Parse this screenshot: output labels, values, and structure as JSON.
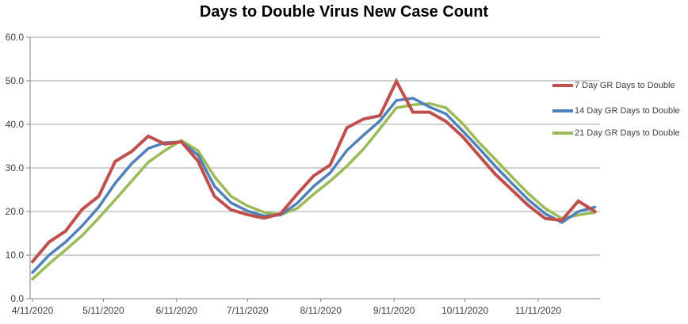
{
  "chart_data": {
    "type": "line",
    "title": "Days to Double Virus New Case Count",
    "xlabel": "",
    "ylabel": "",
    "grid": true,
    "legend_position": "right",
    "x_axis": {
      "tick_labels": [
        "4/11/2020",
        "5/11/2020",
        "6/11/2020",
        "7/11/2020",
        "8/11/2020",
        "9/11/2020",
        "10/11/2020",
        "11/11/2020"
      ],
      "tick_days": [
        0,
        30,
        61,
        91,
        122,
        153,
        183,
        214
      ]
    },
    "y_axis": {
      "ticks": [
        0,
        10,
        20,
        30,
        40,
        50,
        60
      ],
      "decimals": 1,
      "range": [
        0,
        60
      ]
    },
    "points": {
      "cadence": "weekly",
      "x_dates": [
        "4/11/2020",
        "4/18/2020",
        "4/25/2020",
        "5/2/2020",
        "5/9/2020",
        "5/16/2020",
        "5/23/2020",
        "5/30/2020",
        "6/6/2020",
        "6/13/2020",
        "6/20/2020",
        "6/27/2020",
        "7/4/2020",
        "7/11/2020",
        "7/18/2020",
        "7/25/2020",
        "8/1/2020",
        "8/8/2020",
        "8/15/2020",
        "8/22/2020",
        "8/29/2020",
        "9/5/2020",
        "9/12/2020",
        "9/19/2020",
        "9/26/2020",
        "10/3/2020",
        "10/10/2020",
        "10/17/2020",
        "10/24/2020",
        "10/31/2020",
        "11/7/2020",
        "11/14/2020",
        "11/21/2020",
        "11/28/2020",
        "12/5/2020"
      ],
      "x_days": [
        0,
        7,
        14,
        21,
        28,
        35,
        42,
        49,
        56,
        63,
        70,
        77,
        84,
        91,
        98,
        105,
        112,
        119,
        126,
        133,
        140,
        147,
        154,
        161,
        168,
        175,
        182,
        189,
        196,
        203,
        210,
        217,
        224,
        231,
        238
      ]
    },
    "series": [
      {
        "name": "7 Day GR Days to Double",
        "color": "#C0504D",
        "stroke_width": 4,
        "values": [
          8.5,
          13.0,
          15.5,
          20.5,
          23.5,
          31.5,
          33.8,
          37.3,
          35.5,
          36.0,
          31.6,
          23.5,
          20.4,
          19.3,
          18.5,
          19.5,
          24.0,
          28.2,
          30.7,
          39.2,
          41.2,
          42.0,
          49.9,
          42.8,
          42.8,
          40.7,
          37.2,
          32.8,
          28.5,
          24.9,
          21.3,
          18.4,
          18.0,
          22.4,
          20.0
        ]
      },
      {
        "name": "14 Day GR Days to Double",
        "color": "#4F81BD",
        "stroke_width": 3.5,
        "values": [
          6.0,
          10.0,
          13.0,
          16.7,
          21.0,
          26.5,
          31.0,
          34.5,
          35.8,
          36.0,
          33.0,
          25.8,
          22.0,
          20.1,
          19.0,
          19.2,
          21.9,
          25.8,
          28.9,
          34.0,
          37.5,
          40.8,
          45.5,
          46.0,
          44.0,
          42.4,
          38.5,
          34.5,
          30.3,
          26.4,
          22.6,
          19.5,
          17.5,
          20.0,
          21.0
        ]
      },
      {
        "name": "21 Day GR Days to Double",
        "color": "#9BBB59",
        "stroke_width": 3.5,
        "values": [
          4.5,
          8.0,
          11.2,
          14.5,
          18.5,
          22.7,
          27.0,
          31.3,
          34.0,
          36.3,
          34.0,
          28.0,
          23.5,
          21.3,
          19.8,
          19.3,
          20.7,
          24.0,
          27.0,
          30.4,
          34.3,
          39.0,
          43.8,
          44.5,
          44.8,
          43.8,
          40.2,
          35.8,
          31.9,
          27.9,
          24.0,
          20.7,
          18.4,
          19.2,
          19.8
        ]
      }
    ],
    "colors": {
      "gridline": "#A6A6A6",
      "axis": "#808080",
      "tick_text": "#404040",
      "title_text": "#000000"
    }
  }
}
